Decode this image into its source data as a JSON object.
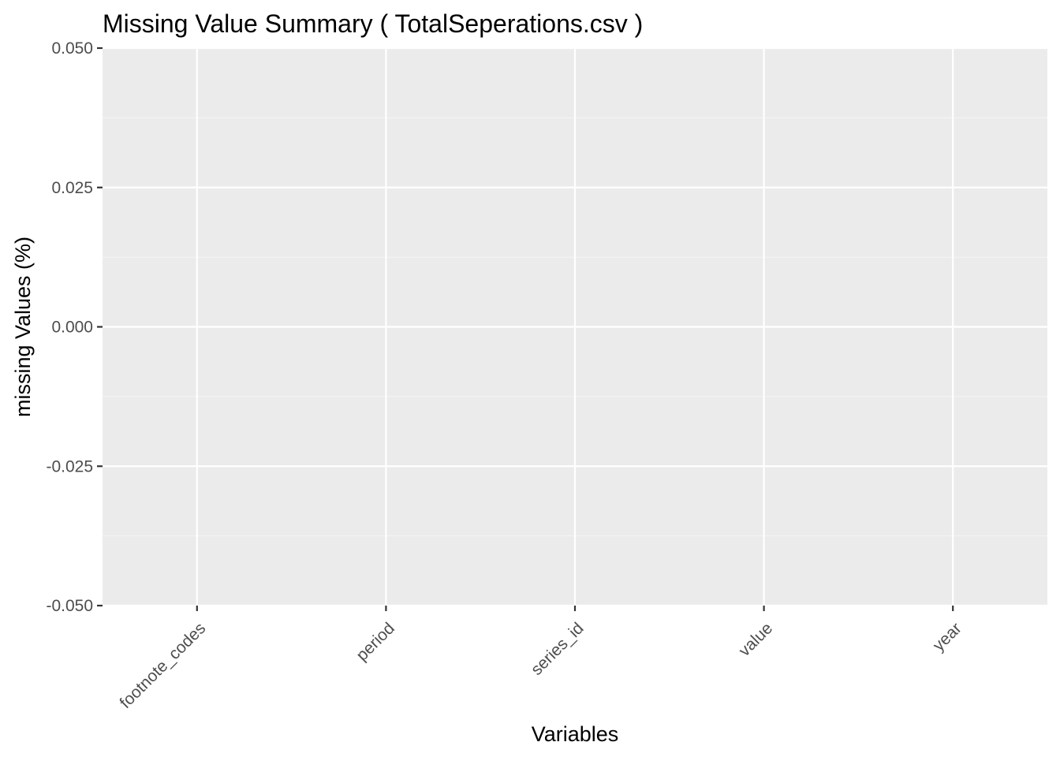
{
  "chart_data": {
    "type": "bar",
    "title": "Missing Value Summary ( TotalSeperations.csv )",
    "xlabel": "Variables",
    "ylabel": "missing Values (%)",
    "categories": [
      "footnote_codes",
      "period",
      "series_id",
      "value",
      "year"
    ],
    "values": [
      0,
      0,
      0,
      0,
      0
    ],
    "ylim": [
      -0.05,
      0.05
    ],
    "yticks": [
      0.05,
      0.025,
      0.0,
      -0.025,
      -0.05
    ],
    "ytick_labels": [
      "0.050",
      "0.025",
      "0.000",
      "-0.025",
      "-0.050"
    ],
    "grid": true,
    "legend": "none",
    "colors": {
      "panel_background": "#ebebeb",
      "grid_major": "#ffffff",
      "grid_minor": "#f5f5f5",
      "tick_color": "#333333",
      "tick_label_color": "#4d4d4d"
    }
  }
}
